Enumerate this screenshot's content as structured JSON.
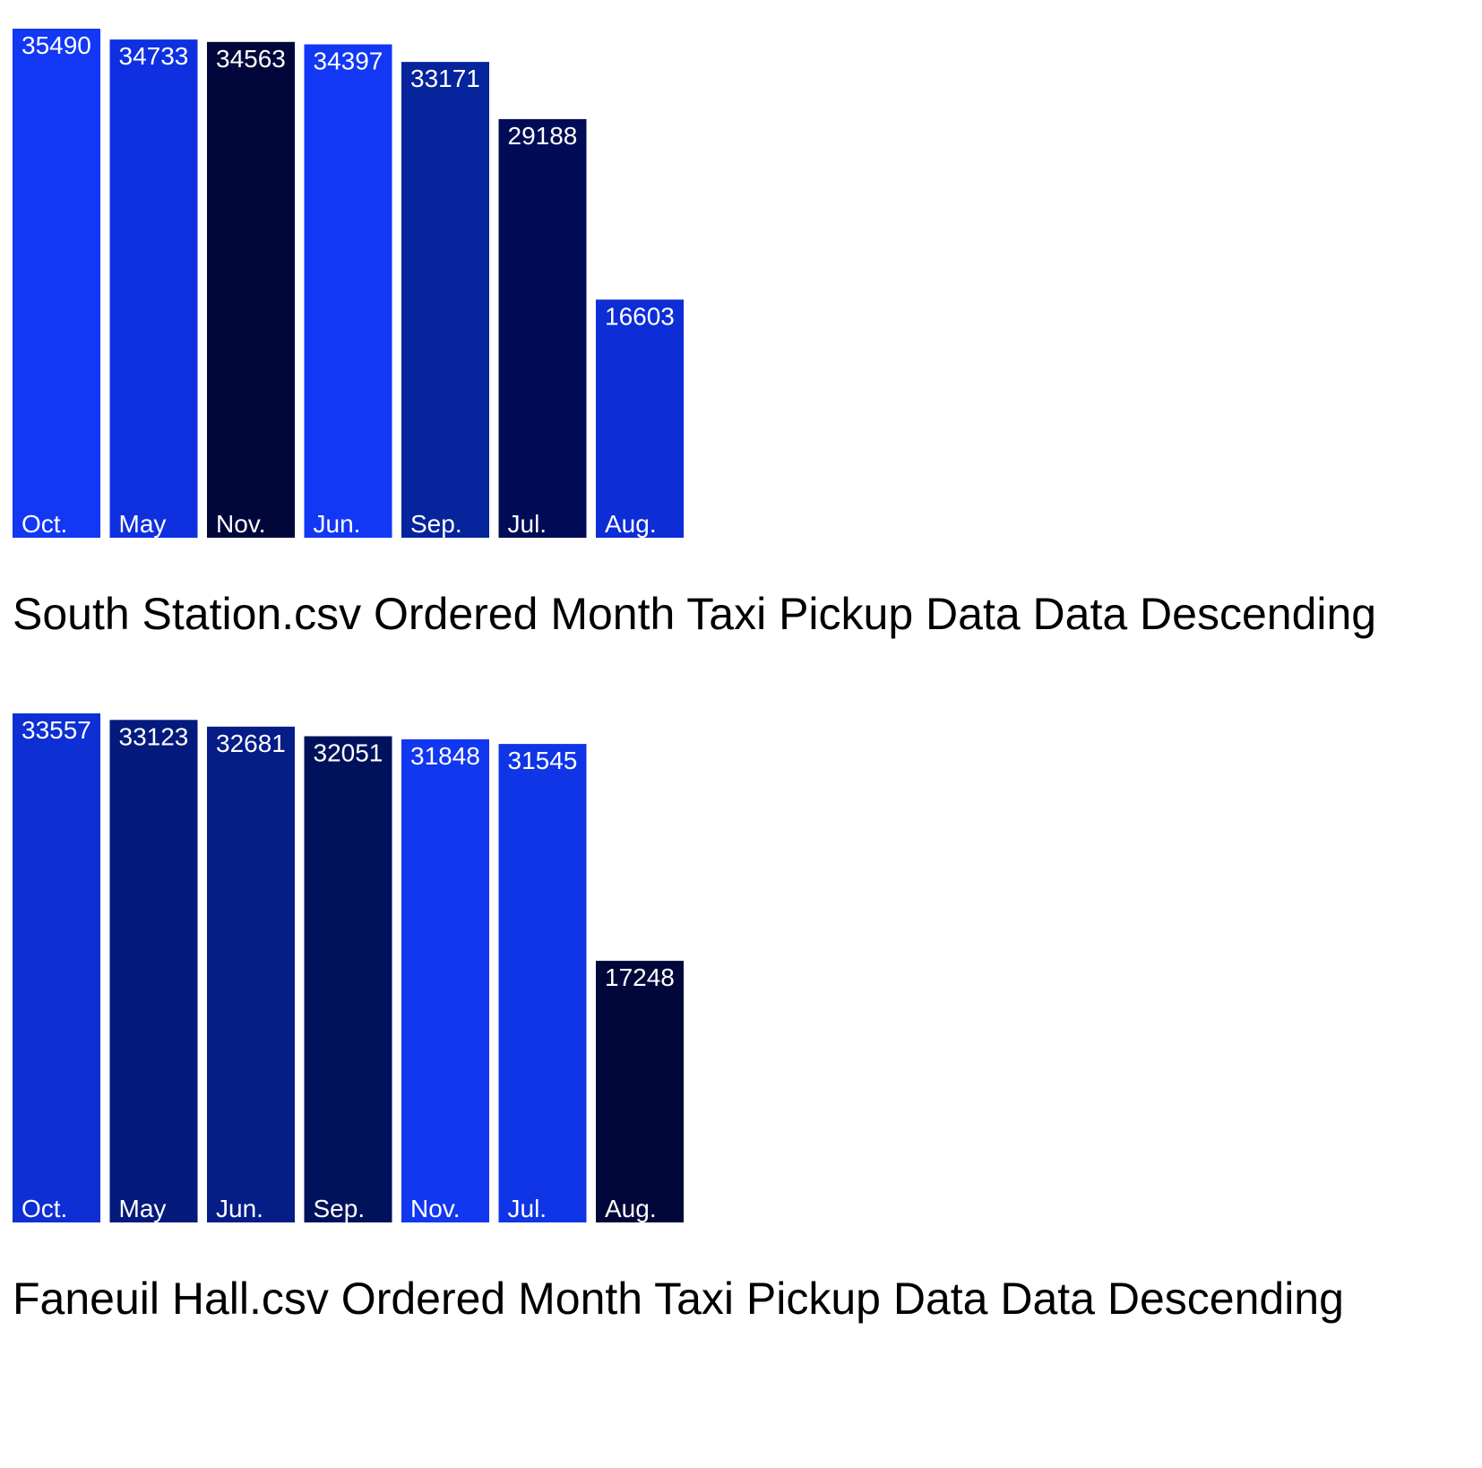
{
  "chart_data": [
    {
      "type": "bar",
      "title": "South Station.csv Ordered Month Taxi Pickup Data Data Descending",
      "categories": [
        "Oct.",
        "May",
        "Nov.",
        "Jun.",
        "Sep.",
        "Jul.",
        "Aug."
      ],
      "values": [
        35490,
        34733,
        34563,
        34397,
        33171,
        29188,
        16603
      ],
      "colors": [
        "#1237f5",
        "#0f30e0",
        "#01073a",
        "#1237f5",
        "#06249b",
        "#000c55",
        "#0d2dd6"
      ],
      "grid": false,
      "legend": "none"
    },
    {
      "type": "bar",
      "title": "Faneuil Hall.csv Ordered Month Taxi Pickup Data Data Descending",
      "categories": [
        "Oct.",
        "May",
        "Jun.",
        "Sep.",
        "Nov.",
        "Jul.",
        "Aug."
      ],
      "values": [
        33557,
        33123,
        32681,
        32051,
        31848,
        31545,
        17248
      ],
      "colors": [
        "#0e2fd4",
        "#041a7c",
        "#061d87",
        "#01125c",
        "#1237f0",
        "#0f35e6",
        "#01073a"
      ],
      "grid": false,
      "legend": "none"
    }
  ]
}
